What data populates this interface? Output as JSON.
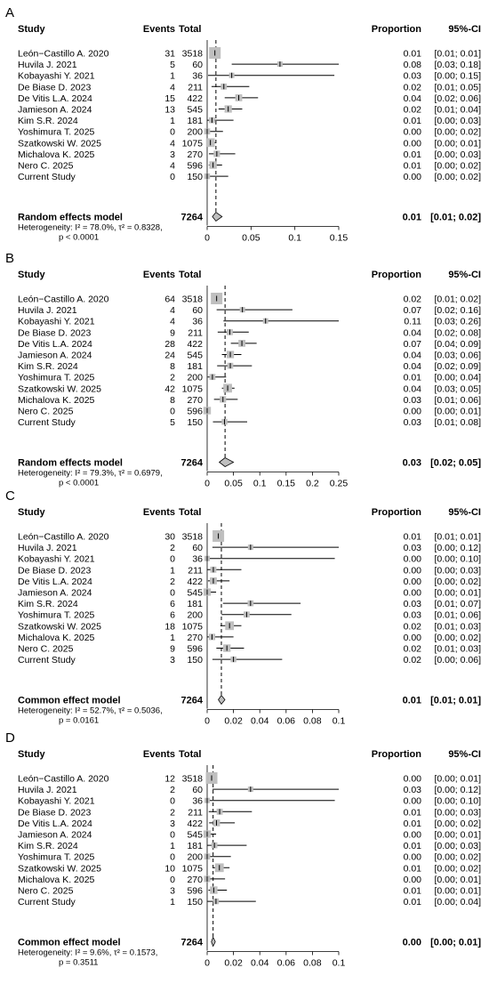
{
  "figure": {
    "headers": {
      "study": "Study",
      "events": "Events",
      "total": "Total",
      "proportion": "Proportion",
      "ci": "95%-CI"
    },
    "colors": {
      "box": "#bfbfbf",
      "ci_line": "#000000",
      "diamond_fill": "#bfbfbf",
      "reference_line": "#000000"
    }
  },
  "chart_data": [
    {
      "panel_label": "A",
      "type": "forest",
      "xlim": [
        0,
        0.15
      ],
      "xticks": [
        0,
        0.05,
        0.1,
        0.15
      ],
      "xtick_labels": [
        "0",
        "0.05",
        "0.1",
        "0.15"
      ],
      "studies": [
        {
          "study": "León−Castillo A. 2020",
          "events": "31",
          "total": "3518",
          "est": 0.0088,
          "lo": 0.006,
          "hi": 0.0125,
          "prop": "0.01",
          "ci": "[0.01; 0.01]"
        },
        {
          "study": "Huvila J. 2021",
          "events": "5",
          "total": "60",
          "est": 0.083,
          "lo": 0.028,
          "hi": 0.184,
          "prop": "0.08",
          "ci": "[0.03; 0.18]"
        },
        {
          "study": "Kobayashi Y. 2021",
          "events": "1",
          "total": "36",
          "est": 0.028,
          "lo": 0.001,
          "hi": 0.145,
          "prop": "0.03",
          "ci": "[0.00; 0.15]"
        },
        {
          "study": "De Biase D. 2023",
          "events": "4",
          "total": "211",
          "est": 0.019,
          "lo": 0.005,
          "hi": 0.048,
          "prop": "0.02",
          "ci": "[0.01; 0.05]"
        },
        {
          "study": "De Vitis L.A. 2024",
          "events": "15",
          "total": "422",
          "est": 0.036,
          "lo": 0.02,
          "hi": 0.058,
          "prop": "0.04",
          "ci": "[0.02; 0.06]"
        },
        {
          "study": "Jamieson A. 2024",
          "events": "13",
          "total": "545",
          "est": 0.024,
          "lo": 0.013,
          "hi": 0.04,
          "prop": "0.02",
          "ci": "[0.01; 0.04]"
        },
        {
          "study": "Kim S.R. 2024",
          "events": "1",
          "total": "181",
          "est": 0.0055,
          "lo": 0.0001,
          "hi": 0.03,
          "prop": "0.01",
          "ci": "[0.00; 0.03]"
        },
        {
          "study": "Yoshimura T. 2025",
          "events": "0",
          "total": "200",
          "est": 0,
          "lo": 0,
          "hi": 0.018,
          "prop": "0.00",
          "ci": "[0.00; 0.02]"
        },
        {
          "study": "Szatkowski W. 2025",
          "events": "4",
          "total": "1075",
          "est": 0.0037,
          "lo": 0.001,
          "hi": 0.0095,
          "prop": "0.00",
          "ci": "[0.00; 0.01]"
        },
        {
          "study": "Michalova K. 2025",
          "events": "3",
          "total": "270",
          "est": 0.011,
          "lo": 0.002,
          "hi": 0.032,
          "prop": "0.01",
          "ci": "[0.00; 0.03]"
        },
        {
          "study": "Nero C. 2025",
          "events": "4",
          "total": "596",
          "est": 0.0067,
          "lo": 0.0018,
          "hi": 0.017,
          "prop": "0.01",
          "ci": "[0.00; 0.02]"
        },
        {
          "study": "Current Study",
          "events": "0",
          "total": "150",
          "est": 0,
          "lo": 0,
          "hi": 0.024,
          "prop": "0.00",
          "ci": "[0.00; 0.02]"
        }
      ],
      "pooled": {
        "label": "Random effects model",
        "total": "7264",
        "est": 0.01,
        "lo": 0.006,
        "hi": 0.017,
        "prop": "0.01",
        "ci": "[0.01; 0.02]"
      },
      "heterogeneity": {
        "line1": "Heterogeneity: I² = 78.0%, τ² = 0.8328,",
        "line2": "p < 0.0001"
      }
    },
    {
      "panel_label": "B",
      "type": "forest",
      "xlim": [
        0,
        0.25
      ],
      "xticks": [
        0,
        0.05,
        0.1,
        0.15,
        0.2,
        0.25
      ],
      "xtick_labels": [
        "0",
        "0.05",
        "0.1",
        "0.15",
        "0.2",
        "0.25"
      ],
      "studies": [
        {
          "study": "León−Castillo A. 2020",
          "events": "64",
          "total": "3518",
          "est": 0.018,
          "lo": 0.014,
          "hi": 0.023,
          "prop": "0.02",
          "ci": "[0.01; 0.02]"
        },
        {
          "study": "Huvila J. 2021",
          "events": "4",
          "total": "60",
          "est": 0.067,
          "lo": 0.018,
          "hi": 0.162,
          "prop": "0.07",
          "ci": "[0.02; 0.16]"
        },
        {
          "study": "Kobayashi Y. 2021",
          "events": "4",
          "total": "36",
          "est": 0.111,
          "lo": 0.031,
          "hi": 0.261,
          "prop": "0.11",
          "ci": "[0.03; 0.26]"
        },
        {
          "study": "De Biase D. 2023",
          "events": "9",
          "total": "211",
          "est": 0.043,
          "lo": 0.02,
          "hi": 0.079,
          "prop": "0.04",
          "ci": "[0.02; 0.08]"
        },
        {
          "study": "De Vitis L.A. 2024",
          "events": "28",
          "total": "422",
          "est": 0.066,
          "lo": 0.045,
          "hi": 0.094,
          "prop": "0.07",
          "ci": "[0.04; 0.09]"
        },
        {
          "study": "Jamieson A. 2024",
          "events": "24",
          "total": "545",
          "est": 0.044,
          "lo": 0.028,
          "hi": 0.065,
          "prop": "0.04",
          "ci": "[0.03; 0.06]"
        },
        {
          "study": "Kim S.R. 2024",
          "events": "8",
          "total": "181",
          "est": 0.044,
          "lo": 0.019,
          "hi": 0.085,
          "prop": "0.04",
          "ci": "[0.02; 0.09]"
        },
        {
          "study": "Yoshimura T. 2025",
          "events": "2",
          "total": "200",
          "est": 0.01,
          "lo": 0.001,
          "hi": 0.036,
          "prop": "0.01",
          "ci": "[0.00; 0.04]"
        },
        {
          "study": "Szatkowski W. 2025",
          "events": "42",
          "total": "1075",
          "est": 0.039,
          "lo": 0.028,
          "hi": 0.052,
          "prop": "0.04",
          "ci": "[0.03; 0.05]"
        },
        {
          "study": "Michalova K. 2025",
          "events": "8",
          "total": "270",
          "est": 0.03,
          "lo": 0.013,
          "hi": 0.058,
          "prop": "0.03",
          "ci": "[0.01; 0.06]"
        },
        {
          "study": "Nero C. 2025",
          "events": "0",
          "total": "596",
          "est": 0,
          "lo": 0,
          "hi": 0.006,
          "prop": "0.00",
          "ci": "[0.00; 0.01]"
        },
        {
          "study": "Current Study",
          "events": "5",
          "total": "150",
          "est": 0.033,
          "lo": 0.011,
          "hi": 0.076,
          "prop": "0.03",
          "ci": "[0.01; 0.08]"
        }
      ],
      "pooled": {
        "label": "Random effects model",
        "total": "7264",
        "est": 0.034,
        "lo": 0.023,
        "hi": 0.05,
        "prop": "0.03",
        "ci": "[0.02; 0.05]"
      },
      "heterogeneity": {
        "line1": "Heterogeneity: I² = 79.3%, τ² = 0.6979,",
        "line2": "p < 0.0001"
      }
    },
    {
      "panel_label": "C",
      "type": "forest",
      "xlim": [
        0,
        0.1
      ],
      "xticks": [
        0,
        0.02,
        0.04,
        0.06,
        0.08,
        0.1
      ],
      "xtick_labels": [
        "0",
        "0.02",
        "0.04",
        "0.06",
        "0.08",
        "0.1"
      ],
      "studies": [
        {
          "study": "León−Castillo A. 2020",
          "events": "30",
          "total": "3518",
          "est": 0.0085,
          "lo": 0.006,
          "hi": 0.012,
          "prop": "0.01",
          "ci": "[0.01; 0.01]"
        },
        {
          "study": "Huvila J. 2021",
          "events": "2",
          "total": "60",
          "est": 0.033,
          "lo": 0.004,
          "hi": 0.115,
          "prop": "0.03",
          "ci": "[0.00; 0.12]"
        },
        {
          "study": "Kobayashi Y. 2021",
          "events": "0",
          "total": "36",
          "est": 0,
          "lo": 0,
          "hi": 0.097,
          "prop": "0.00",
          "ci": "[0.00; 0.10]"
        },
        {
          "study": "De Biase D. 2023",
          "events": "1",
          "total": "211",
          "est": 0.0047,
          "lo": 0.0001,
          "hi": 0.026,
          "prop": "0.00",
          "ci": "[0.00; 0.03]"
        },
        {
          "study": "De Vitis L.A. 2024",
          "events": "2",
          "total": "422",
          "est": 0.0047,
          "lo": 0.0006,
          "hi": 0.017,
          "prop": "0.00",
          "ci": "[0.00; 0.02]"
        },
        {
          "study": "Jamieson A. 2024",
          "events": "0",
          "total": "545",
          "est": 0,
          "lo": 0,
          "hi": 0.0068,
          "prop": "0.00",
          "ci": "[0.00; 0.01]"
        },
        {
          "study": "Kim S.R. 2024",
          "events": "6",
          "total": "181",
          "est": 0.033,
          "lo": 0.012,
          "hi": 0.071,
          "prop": "0.03",
          "ci": "[0.01; 0.07]"
        },
        {
          "study": "Yoshimura T. 2025",
          "events": "6",
          "total": "200",
          "est": 0.03,
          "lo": 0.011,
          "hi": 0.064,
          "prop": "0.03",
          "ci": "[0.01; 0.06]"
        },
        {
          "study": "Szatkowski W. 2025",
          "events": "18",
          "total": "1075",
          "est": 0.017,
          "lo": 0.01,
          "hi": 0.026,
          "prop": "0.02",
          "ci": "[0.01; 0.03]"
        },
        {
          "study": "Michalova K. 2025",
          "events": "1",
          "total": "270",
          "est": 0.0037,
          "lo": 0.0001,
          "hi": 0.02,
          "prop": "0.00",
          "ci": "[0.00; 0.02]"
        },
        {
          "study": "Nero C. 2025",
          "events": "9",
          "total": "596",
          "est": 0.015,
          "lo": 0.007,
          "hi": 0.028,
          "prop": "0.02",
          "ci": "[0.01; 0.03]"
        },
        {
          "study": "Current Study",
          "events": "3",
          "total": "150",
          "est": 0.02,
          "lo": 0.004,
          "hi": 0.057,
          "prop": "0.02",
          "ci": "[0.00; 0.06]"
        }
      ],
      "pooled": {
        "label": "Common effect model",
        "total": "7264",
        "est": 0.0108,
        "lo": 0.0085,
        "hi": 0.0135,
        "prop": "0.01",
        "ci": "[0.01; 0.01]"
      },
      "heterogeneity": {
        "line1": "Heterogeneity: I² = 52.7%, τ² = 0.5036,",
        "line2": "p = 0.0161"
      }
    },
    {
      "panel_label": "D",
      "type": "forest",
      "xlim": [
        0,
        0.1
      ],
      "xticks": [
        0,
        0.02,
        0.04,
        0.06,
        0.08,
        0.1
      ],
      "xtick_labels": [
        "0",
        "0.02",
        "0.04",
        "0.06",
        "0.08",
        "0.1"
      ],
      "studies": [
        {
          "study": "León−Castillo A. 2020",
          "events": "12",
          "total": "3518",
          "est": 0.0034,
          "lo": 0.0018,
          "hi": 0.006,
          "prop": "0.00",
          "ci": "[0.00; 0.01]"
        },
        {
          "study": "Huvila J. 2021",
          "events": "2",
          "total": "60",
          "est": 0.033,
          "lo": 0.004,
          "hi": 0.115,
          "prop": "0.03",
          "ci": "[0.00; 0.12]"
        },
        {
          "study": "Kobayashi Y. 2021",
          "events": "0",
          "total": "36",
          "est": 0,
          "lo": 0,
          "hi": 0.097,
          "prop": "0.00",
          "ci": "[0.00; 0.10]"
        },
        {
          "study": "De Biase D. 2023",
          "events": "2",
          "total": "211",
          "est": 0.0095,
          "lo": 0.0012,
          "hi": 0.034,
          "prop": "0.01",
          "ci": "[0.00; 0.03]"
        },
        {
          "study": "De Vitis L.A. 2024",
          "events": "3",
          "total": "422",
          "est": 0.0071,
          "lo": 0.0015,
          "hi": 0.021,
          "prop": "0.01",
          "ci": "[0.00; 0.02]"
        },
        {
          "study": "Jamieson A. 2024",
          "events": "0",
          "total": "545",
          "est": 0,
          "lo": 0,
          "hi": 0.0068,
          "prop": "0.00",
          "ci": "[0.00; 0.01]"
        },
        {
          "study": "Kim S.R. 2024",
          "events": "1",
          "total": "181",
          "est": 0.0055,
          "lo": 0.0001,
          "hi": 0.03,
          "prop": "0.01",
          "ci": "[0.00; 0.03]"
        },
        {
          "study": "Yoshimura T. 2025",
          "events": "0",
          "total": "200",
          "est": 0,
          "lo": 0,
          "hi": 0.018,
          "prop": "0.00",
          "ci": "[0.00; 0.02]"
        },
        {
          "study": "Szatkowski W. 2025",
          "events": "10",
          "total": "1075",
          "est": 0.0093,
          "lo": 0.0045,
          "hi": 0.017,
          "prop": "0.01",
          "ci": "[0.00; 0.02]"
        },
        {
          "study": "Michalova K. 2025",
          "events": "0",
          "total": "270",
          "est": 0,
          "lo": 0,
          "hi": 0.0136,
          "prop": "0.00",
          "ci": "[0.00; 0.01]"
        },
        {
          "study": "Nero C. 2025",
          "events": "3",
          "total": "596",
          "est": 0.005,
          "lo": 0.001,
          "hi": 0.015,
          "prop": "0.01",
          "ci": "[0.00; 0.01]"
        },
        {
          "study": "Current Study",
          "events": "1",
          "total": "150",
          "est": 0.0067,
          "lo": 0.0002,
          "hi": 0.037,
          "prop": "0.01",
          "ci": "[0.00; 0.04]"
        }
      ],
      "pooled": {
        "label": "Common effect model",
        "total": "7264",
        "est": 0.0045,
        "lo": 0.0032,
        "hi": 0.0062,
        "prop": "0.00",
        "ci": "[0.00; 0.01]"
      },
      "heterogeneity": {
        "line1": "Heterogeneity: I² = 9.6%, τ² = 0.1573,",
        "line2": "p = 0.3511"
      }
    }
  ]
}
